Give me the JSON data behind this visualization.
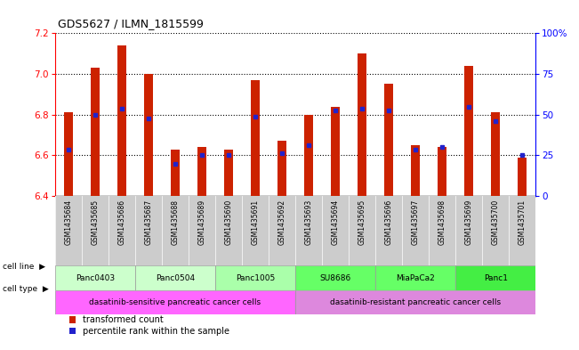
{
  "title": "GDS5627 / ILMN_1815599",
  "samples": [
    "GSM1435684",
    "GSM1435685",
    "GSM1435686",
    "GSM1435687",
    "GSM1435688",
    "GSM1435689",
    "GSM1435690",
    "GSM1435691",
    "GSM1435692",
    "GSM1435693",
    "GSM1435694",
    "GSM1435695",
    "GSM1435696",
    "GSM1435697",
    "GSM1435698",
    "GSM1435699",
    "GSM1435700",
    "GSM1435701"
  ],
  "bar_heights": [
    6.81,
    7.03,
    7.14,
    7.0,
    6.63,
    6.64,
    6.63,
    6.97,
    6.67,
    6.8,
    6.84,
    7.1,
    6.95,
    6.65,
    6.64,
    7.04,
    6.81,
    6.59
  ],
  "blue_dot_pos": [
    6.63,
    6.8,
    6.83,
    6.78,
    6.56,
    6.6,
    6.6,
    6.79,
    6.61,
    6.65,
    6.82,
    6.83,
    6.82,
    6.63,
    6.64,
    6.84,
    6.77,
    6.6
  ],
  "ylim_left": [
    6.4,
    7.2
  ],
  "ylim_right": [
    0,
    100
  ],
  "yticks_left": [
    6.4,
    6.6,
    6.8,
    7.0,
    7.2
  ],
  "yticks_right_vals": [
    0,
    25,
    50,
    75,
    100
  ],
  "yticks_right_labels": [
    "0",
    "25",
    "50",
    "75",
    "100%"
  ],
  "bar_color": "#cc2200",
  "dot_color": "#2222cc",
  "cell_lines": [
    {
      "label": "Panc0403",
      "start": 0,
      "end": 2,
      "color": "#ccffcc"
    },
    {
      "label": "Panc0504",
      "start": 3,
      "end": 5,
      "color": "#ccffcc"
    },
    {
      "label": "Panc1005",
      "start": 6,
      "end": 8,
      "color": "#aaffaa"
    },
    {
      "label": "SU8686",
      "start": 9,
      "end": 11,
      "color": "#66ff66"
    },
    {
      "label": "MiaPaCa2",
      "start": 12,
      "end": 14,
      "color": "#66ff66"
    },
    {
      "label": "Panc1",
      "start": 15,
      "end": 17,
      "color": "#44ee44"
    }
  ],
  "cell_types": [
    {
      "label": "dasatinib-sensitive pancreatic cancer cells",
      "start": 0,
      "end": 8,
      "color": "#ff66ff"
    },
    {
      "label": "dasatinib-resistant pancreatic cancer cells",
      "start": 9,
      "end": 17,
      "color": "#dd88dd"
    }
  ],
  "legend_labels": [
    "transformed count",
    "percentile rank within the sample"
  ],
  "legend_colors": [
    "#cc2200",
    "#2222cc"
  ],
  "bg_gray": "#cccccc",
  "label_arrow": "▶"
}
